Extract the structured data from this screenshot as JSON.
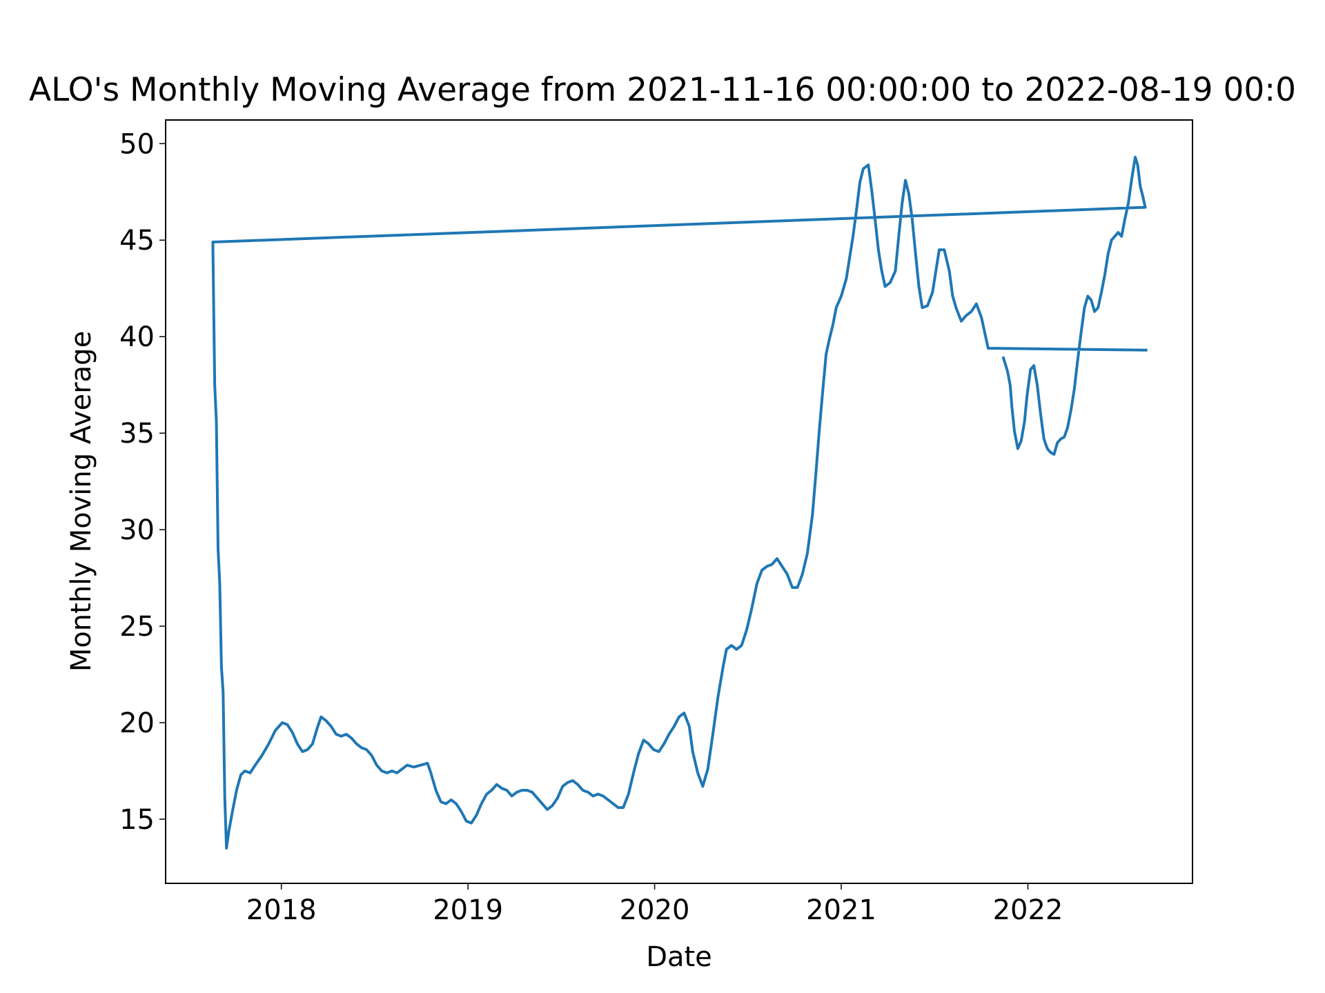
{
  "chart_data": {
    "type": "line",
    "title": "ALO's Monthly Moving Average from 2021-11-16 00:00:00 to 2022-08-19 00:0",
    "x_label": "Date",
    "y_label": "Monthly Moving Average",
    "color": "#1f77b4",
    "xlim": [
      2017.38,
      2022.882
    ],
    "ylim": [
      11.675,
      51.225
    ],
    "xticks": [
      2018,
      2019,
      2020,
      2021,
      2022
    ],
    "yticks": [
      15,
      20,
      25,
      30,
      35,
      40,
      45,
      50
    ],
    "x": [
      2021.869,
      2021.891,
      2021.905,
      2021.914,
      2021.928,
      2021.946,
      2021.964,
      2021.982,
      2021.995,
      2022.014,
      2022.032,
      2022.05,
      2022.068,
      2022.086,
      2022.104,
      2022.122,
      2022.14,
      2022.158,
      2022.176,
      2022.195,
      2022.213,
      2022.231,
      2022.249,
      2022.267,
      2022.285,
      2022.303,
      2022.321,
      2022.339,
      2022.357,
      2022.376,
      2022.394,
      2022.412,
      2022.43,
      2022.448,
      2022.466,
      2022.484,
      2022.502,
      2022.52,
      2022.538,
      2022.557,
      2022.575,
      2022.588,
      2022.602,
      2022.615,
      2022.629,
      2017.633,
      2017.643,
      2017.652,
      2017.661,
      2017.67,
      2017.679,
      2017.688,
      2017.697,
      2017.706,
      2017.719,
      2017.738,
      2017.76,
      2017.783,
      2017.805,
      2017.833,
      2017.86,
      2017.896,
      2017.932,
      2017.968,
      2018.005,
      2018.032,
      2018.059,
      2018.086,
      2018.113,
      2018.14,
      2018.167,
      2018.195,
      2018.213,
      2018.24,
      2018.267,
      2018.294,
      2018.321,
      2018.348,
      2018.376,
      2018.403,
      2018.43,
      2018.457,
      2018.484,
      2018.511,
      2018.538,
      2018.566,
      2018.593,
      2018.62,
      2018.647,
      2018.674,
      2018.71,
      2018.747,
      2018.783,
      2018.801,
      2018.828,
      2018.855,
      2018.882,
      2018.91,
      2018.937,
      2018.964,
      2018.991,
      2019.018,
      2019.045,
      2019.072,
      2019.1,
      2019.127,
      2019.154,
      2019.181,
      2019.208,
      2019.235,
      2019.262,
      2019.29,
      2019.317,
      2019.344,
      2019.371,
      2019.398,
      2019.425,
      2019.452,
      2019.48,
      2019.507,
      2019.534,
      2019.561,
      2019.588,
      2019.615,
      2019.643,
      2019.67,
      2019.697,
      2019.724,
      2019.751,
      2019.778,
      2019.805,
      2019.832,
      2019.86,
      2019.887,
      2019.914,
      2019.941,
      2019.968,
      2019.995,
      2020.023,
      2020.05,
      2020.077,
      2020.104,
      2020.131,
      2020.158,
      2020.186,
      2020.204,
      2020.231,
      2020.258,
      2020.285,
      2020.312,
      2020.339,
      2020.367,
      2020.385,
      2020.412,
      2020.439,
      2020.466,
      2020.493,
      2020.52,
      2020.548,
      2020.575,
      2020.602,
      2020.629,
      2020.656,
      2020.683,
      2020.71,
      2020.738,
      2020.765,
      2020.792,
      2020.819,
      2020.846,
      2020.864,
      2020.882,
      2020.9,
      2020.919,
      2020.937,
      2020.955,
      2020.973,
      2021.0,
      2021.027,
      2021.045,
      2021.063,
      2021.081,
      2021.1,
      2021.118,
      2021.145,
      2021.163,
      2021.181,
      2021.199,
      2021.217,
      2021.235,
      2021.262,
      2021.29,
      2021.308,
      2021.326,
      2021.344,
      2021.362,
      2021.38,
      2021.398,
      2021.416,
      2021.434,
      2021.462,
      2021.489,
      2021.507,
      2021.525,
      2021.552,
      2021.579,
      2021.597,
      2021.615,
      2021.643,
      2021.67,
      2021.697,
      2021.724,
      2021.751,
      2021.769,
      2021.787,
      2022.633
    ],
    "values": [
      38.9,
      38.2,
      37.5,
      36.4,
      35.1,
      34.2,
      34.6,
      35.6,
      36.9,
      38.3,
      38.5,
      37.5,
      36.0,
      34.7,
      34.2,
      34.0,
      33.9,
      34.5,
      34.7,
      34.8,
      35.3,
      36.2,
      37.3,
      38.8,
      40.2,
      41.5,
      42.1,
      41.9,
      41.3,
      41.5,
      42.3,
      43.2,
      44.3,
      45.0,
      45.2,
      45.4,
      45.2,
      46.1,
      46.9,
      48.2,
      49.3,
      48.9,
      47.8,
      47.3,
      46.7,
      44.9,
      37.5,
      35.6,
      29.0,
      27.2,
      22.9,
      21.6,
      16.1,
      13.5,
      14.4,
      15.4,
      16.5,
      17.3,
      17.5,
      17.4,
      17.8,
      18.3,
      18.9,
      19.6,
      20.0,
      19.9,
      19.5,
      18.9,
      18.5,
      18.6,
      18.9,
      19.8,
      20.3,
      20.1,
      19.8,
      19.4,
      19.3,
      19.4,
      19.2,
      18.9,
      18.7,
      18.6,
      18.3,
      17.8,
      17.5,
      17.4,
      17.5,
      17.4,
      17.6,
      17.8,
      17.7,
      17.8,
      17.9,
      17.4,
      16.5,
      15.9,
      15.8,
      16.0,
      15.8,
      15.4,
      14.9,
      14.8,
      15.2,
      15.8,
      16.3,
      16.5,
      16.8,
      16.6,
      16.5,
      16.2,
      16.4,
      16.5,
      16.5,
      16.4,
      16.1,
      15.8,
      15.5,
      15.7,
      16.1,
      16.7,
      16.9,
      17.0,
      16.8,
      16.5,
      16.4,
      16.2,
      16.3,
      16.2,
      16.0,
      15.8,
      15.6,
      15.6,
      16.3,
      17.4,
      18.4,
      19.1,
      18.9,
      18.6,
      18.5,
      18.9,
      19.4,
      19.8,
      20.3,
      20.5,
      19.8,
      18.5,
      17.4,
      16.7,
      17.6,
      19.4,
      21.3,
      22.9,
      23.8,
      24.0,
      23.8,
      24.0,
      24.8,
      25.9,
      27.2,
      27.9,
      28.1,
      28.2,
      28.5,
      28.1,
      27.7,
      27.0,
      27.0,
      27.7,
      28.8,
      30.8,
      32.9,
      35.1,
      37.1,
      39.1,
      39.9,
      40.6,
      41.5,
      42.1,
      43.0,
      44.1,
      45.2,
      46.5,
      48.0,
      48.7,
      48.9,
      47.6,
      46.1,
      44.5,
      43.4,
      42.6,
      42.8,
      43.4,
      45.2,
      46.9,
      48.1,
      47.4,
      46.1,
      44.3,
      42.6,
      41.5,
      41.6,
      42.3,
      43.4,
      44.5,
      44.5,
      43.4,
      42.1,
      41.5,
      40.8,
      41.1,
      41.3,
      41.7,
      41.0,
      40.2,
      39.4,
      39.3
    ]
  }
}
